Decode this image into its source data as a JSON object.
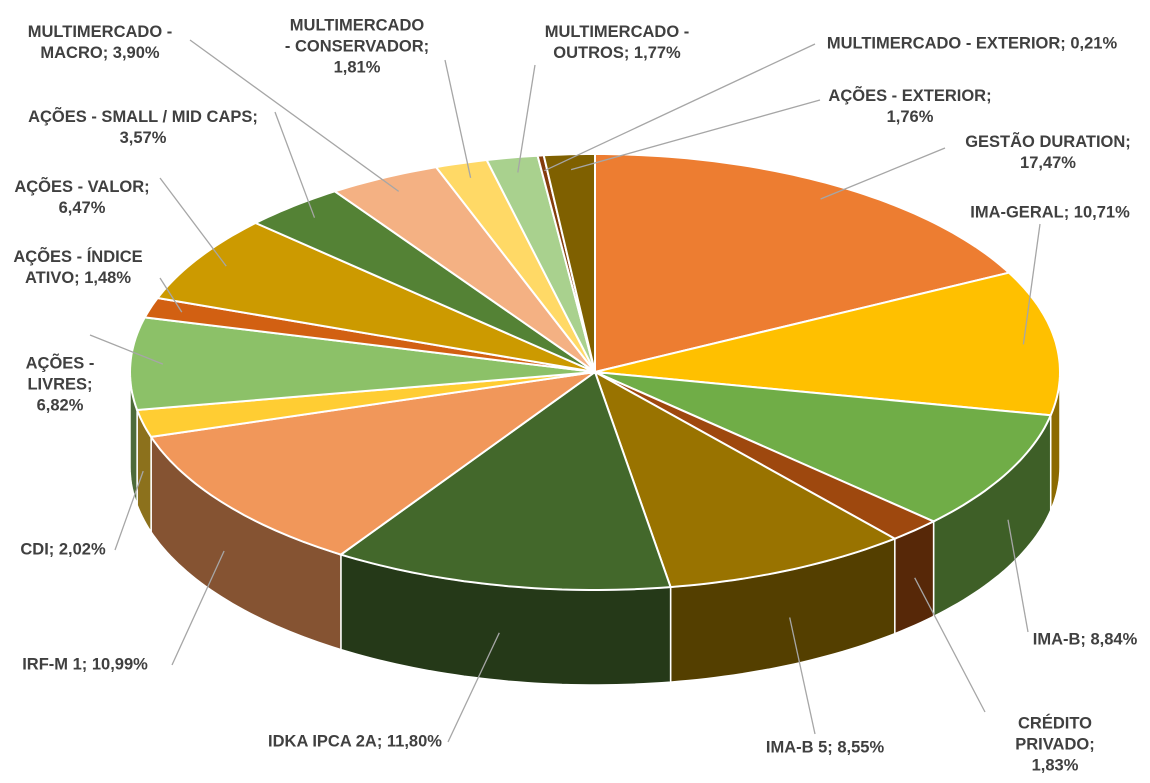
{
  "chart_data": {
    "type": "pie3d",
    "labels": [
      [
        "GESTÃO DURATION;",
        "17,47%"
      ],
      [
        "IMA-GERAL; 10,71%"
      ],
      [
        "IMA-B; 8,84%"
      ],
      [
        "CRÉDITO",
        "PRIVADO;",
        "1,83%"
      ],
      [
        "IMA-B 5; 8,55%"
      ],
      [
        "IDKA IPCA 2A; 11,80%"
      ],
      [
        "IRF-M 1; 10,99%"
      ],
      [
        "CDI; 2,02%"
      ],
      [
        "AÇÕES -",
        "LIVRES;",
        "6,82%"
      ],
      [
        "AÇÕES - ÍNDICE",
        "ATIVO; 1,48%"
      ],
      [
        "AÇÕES - VALOR;",
        "6,47%"
      ],
      [
        "AÇÕES - SMALL / MID CAPS;",
        "3,57%"
      ],
      [
        "MULTIMERCADO -",
        "MACRO; 3,90%"
      ],
      [
        "MULTIMERCADO",
        "- CONSERVADOR;",
        "1,81%"
      ],
      [
        "MULTIMERCADO -",
        "OUTROS; 1,77%"
      ],
      [
        "MULTIMERCADO - EXTERIOR; 0,21%"
      ],
      [
        "AÇÕES - EXTERIOR;",
        "1,76%"
      ]
    ],
    "values": [
      17.47,
      10.71,
      8.84,
      1.83,
      8.55,
      11.8,
      10.99,
      2.02,
      6.82,
      1.48,
      6.47,
      3.57,
      3.9,
      1.81,
      1.77,
      0.21,
      1.76
    ],
    "colors": [
      "#ed7d31",
      "#ffc000",
      "#70ad47",
      "#9e480e",
      "#997300",
      "#43682b",
      "#f1975a",
      "#ffcd33",
      "#8cc168",
      "#d26012",
      "#cc9a00",
      "#548235",
      "#f4b183",
      "#ffd966",
      "#a9d18e",
      "#843c0c",
      "#7f6000"
    ]
  }
}
